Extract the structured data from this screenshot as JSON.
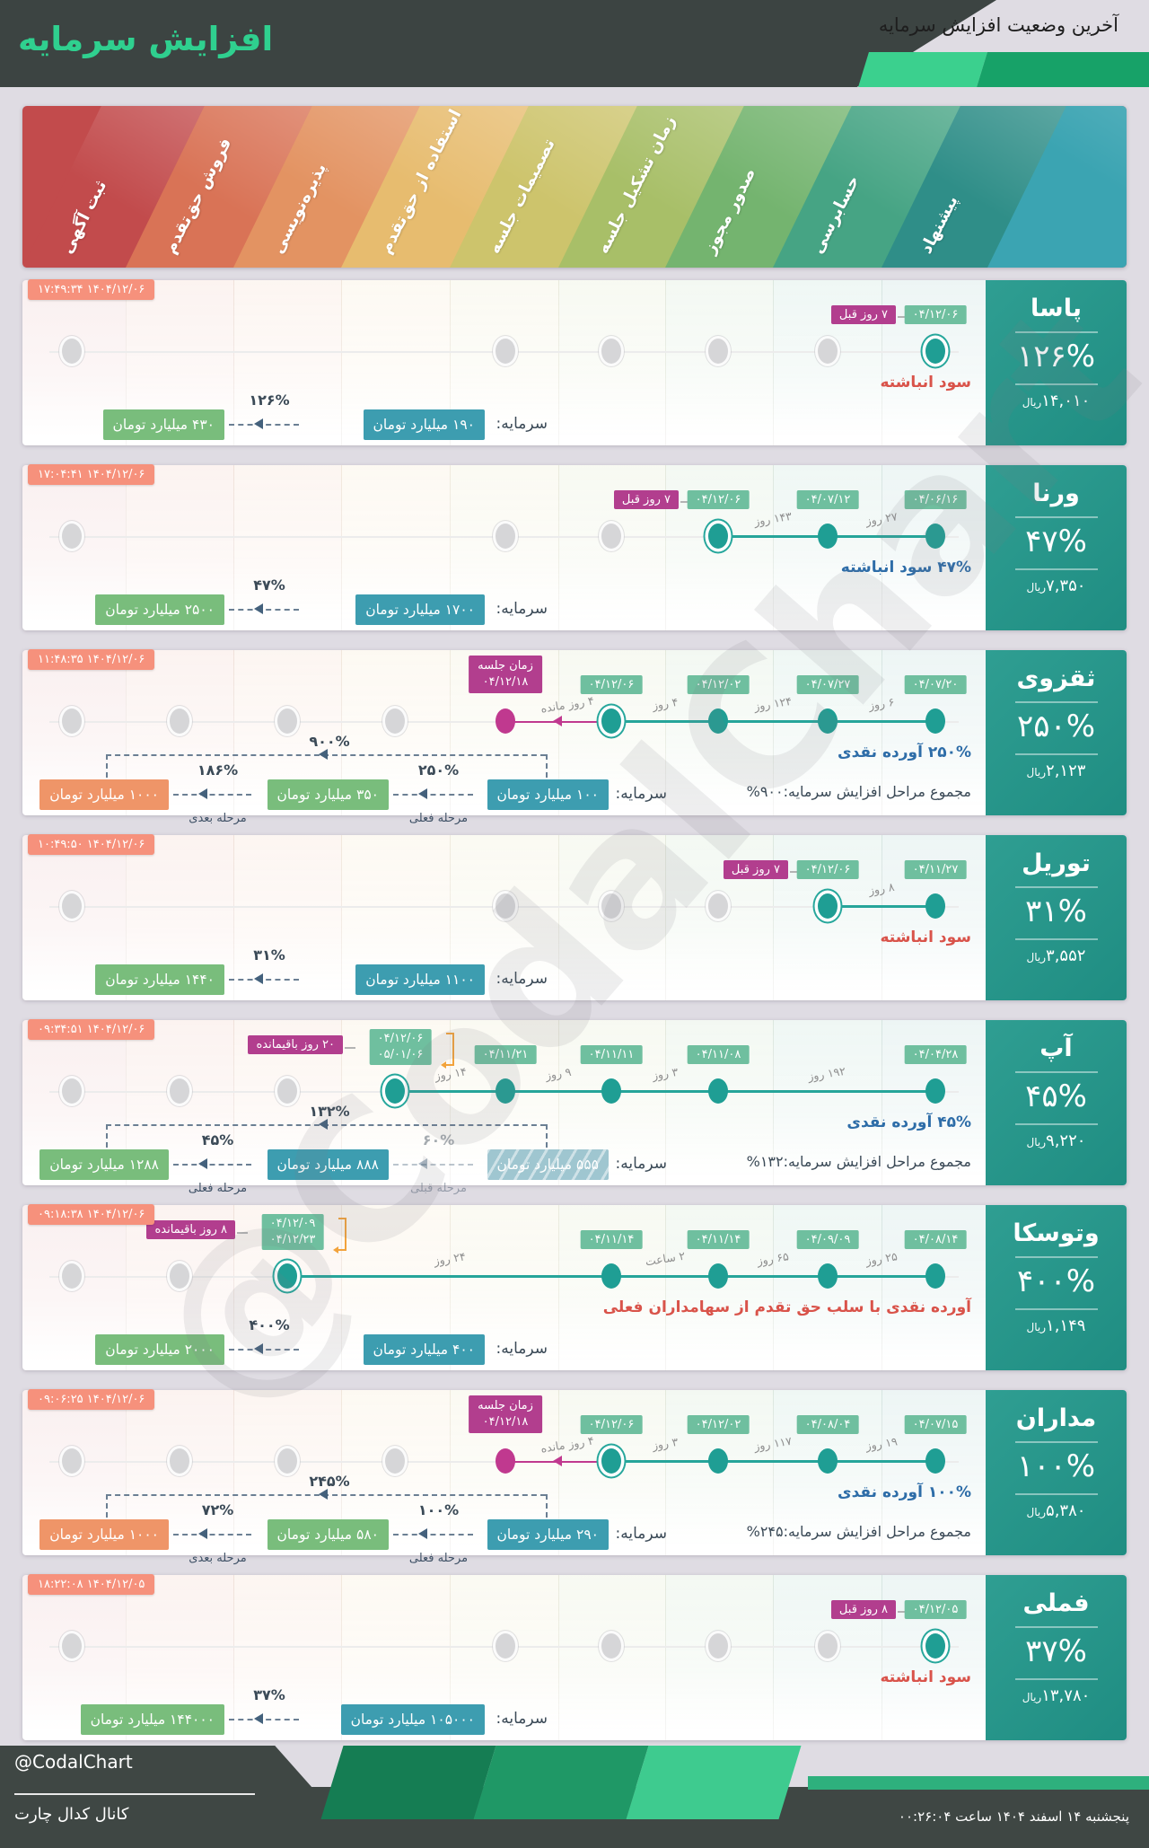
{
  "header": {
    "title": "افزایش سرمایه",
    "subtitle": "آخرین وضعیت افزایش سرمایه"
  },
  "stages": [
    {
      "label": "ثبت آگهی",
      "color": "#c24b4c"
    },
    {
      "label": "فروش حق‌تقدم",
      "color": "#d97356"
    },
    {
      "label": "پذیره‌نویسی",
      "color": "#e39362"
    },
    {
      "label": "استفاده از حق‌تقدم",
      "color": "#e7bc6f"
    },
    {
      "label": "تصمیمات جلسه",
      "color": "#cdc46c"
    },
    {
      "label": "زمان تشکیل جلسه",
      "color": "#a8bf68"
    },
    {
      "label": "صدور مجوز",
      "color": "#74b46f"
    },
    {
      "label": "حسابرسی",
      "color": "#46a484"
    },
    {
      "label": "پیشنهاد",
      "color": "#2f8e88"
    }
  ],
  "banner_edge_color": "#3ba4b2",
  "chart_data": {
    "type": "table",
    "title": "آخرین وضعیت افزایش سرمایه",
    "stage_axis": [
      "پیشنهاد",
      "حسابرسی",
      "صدور مجوز",
      "زمان تشکیل جلسه",
      "تصمیمات جلسه",
      "استفاده از حق‌تقدم",
      "پذیره‌نویسی",
      "فروش حق‌تقدم",
      "ثبت آگهی"
    ],
    "companies": [
      "پاسا",
      "ورنا",
      "ثقزوی",
      "توریل",
      "آپ",
      "وتوسکا",
      "مداران",
      "فملی"
    ],
    "increase_percent": [
      "۱۲۶%",
      "۴۷%",
      "۲۵۰%",
      "۳۱%",
      "۴۵%",
      "۴۰۰%",
      "۱۰۰%",
      "۳۷%"
    ],
    "price_rial": [
      "۱۴,۰۱۰",
      "۷,۳۵۰",
      "۲,۱۲۳",
      "۳,۵۵۲",
      "۹,۲۲۰",
      "۱,۱۴۹",
      "۵,۳۸۰",
      "۱۳,۷۸۰"
    ]
  },
  "rows": [
    {
      "name": "پاسا",
      "percent": "۱۲۶%",
      "price": "۱۴,۰۱۰",
      "price_unit": "ریال",
      "timestamp": "۱۴۰۴/۱۲/۰۶ ۱۷:۴۹:۳۴",
      "events": [
        {
          "col": 8,
          "date": "۰۴/۱۲/۰۶",
          "active": true,
          "ago": "۷ روز قبل"
        }
      ],
      "segments": [],
      "placeholders": [
        0,
        4,
        5,
        6,
        7
      ],
      "note": {
        "text": "سود انباشته",
        "style": "red"
      },
      "capital": {
        "label": "سرمایه:",
        "stages": [
          {
            "value": "۱۹۰ میلیارد تومان",
            "style": "teal"
          },
          {
            "value": "۴۳۰ میلیارد تومان",
            "style": "green"
          }
        ],
        "arrows": [
          {
            "pct": "۱۲۶%"
          }
        ]
      }
    },
    {
      "name": "ورنا",
      "percent": "۴۷%",
      "price": "۷,۳۵۰",
      "price_unit": "ریال",
      "timestamp": "۱۴۰۴/۱۲/۰۶ ۱۷:۰۴:۴۱",
      "events": [
        {
          "col": 8,
          "date": "۰۴/۰۶/۱۶"
        },
        {
          "col": 7,
          "date": "۰۴/۰۷/۱۲"
        },
        {
          "col": 6,
          "date": "۰۴/۱۲/۰۶",
          "active": true,
          "ago": "۷ روز قبل"
        }
      ],
      "segments": [
        {
          "from": 8,
          "to": 7,
          "label": "۲۷ روز"
        },
        {
          "from": 7,
          "to": 6,
          "label": "۱۴۳ روز"
        }
      ],
      "placeholders": [
        0,
        4,
        5
      ],
      "note": {
        "text": "۴۷% سود انباشته",
        "style": "blue"
      },
      "capital": {
        "label": "سرمایه:",
        "stages": [
          {
            "value": "۱۷۰۰ میلیارد تومان",
            "style": "teal"
          },
          {
            "value": "۲۵۰۰ میلیارد تومان",
            "style": "green"
          }
        ],
        "arrows": [
          {
            "pct": "۴۷%"
          }
        ]
      }
    },
    {
      "name": "ثقزوی",
      "percent": "۲۵۰%",
      "price": "۲,۱۲۳",
      "price_unit": "ریال",
      "timestamp": "۱۴۰۴/۱۲/۰۶ ۱۱:۴۸:۳۵",
      "events": [
        {
          "col": 8,
          "date": "۰۴/۰۷/۲۰"
        },
        {
          "col": 7,
          "date": "۰۴/۰۷/۲۷"
        },
        {
          "col": 6,
          "date": "۰۴/۱۲/۰۲"
        },
        {
          "col": 5,
          "date": "۰۴/۱۲/۰۶",
          "active": true
        }
      ],
      "segments": [
        {
          "from": 8,
          "to": 7,
          "label": "۶ روز"
        },
        {
          "from": 7,
          "to": 6,
          "label": "۱۲۴ روز"
        },
        {
          "from": 6,
          "to": 5,
          "label": "۴ روز"
        }
      ],
      "meeting": {
        "col": 4,
        "title": "زمان جلسه",
        "date": "۰۴/۱۲/۱۸",
        "remaining": "۴ روز مانده"
      },
      "placeholders": [
        0,
        1,
        2,
        3
      ],
      "note": {
        "text": "۲۵۰% آورده نقدی",
        "style": "blue"
      },
      "capital": {
        "label": "سرمایه:",
        "stages": [
          {
            "value": "۱۰۰ میلیارد تومان",
            "style": "teal"
          },
          {
            "value": "۳۵۰ میلیارد تومان",
            "style": "green"
          },
          {
            "value": "۱۰۰۰ میلیارد تومان",
            "style": "orange"
          }
        ],
        "arrows": [
          {
            "pct": "۲۵۰%",
            "label": "مرحله فعلی"
          },
          {
            "pct": "۱۸۶%",
            "label": "مرحله بعدی"
          }
        ],
        "bracket_pct": "۹۰۰%",
        "total_note": "مجموع مراحل افزایش سرمایه:۹۰۰%"
      }
    },
    {
      "name": "توریل",
      "percent": "۳۱%",
      "price": "۳,۵۵۲",
      "price_unit": "ریال",
      "timestamp": "۱۴۰۴/۱۲/۰۶ ۱۰:۴۹:۵۰",
      "events": [
        {
          "col": 8,
          "date": "۰۴/۱۱/۲۷"
        },
        {
          "col": 7,
          "date": "۰۴/۱۲/۰۶",
          "active": true,
          "ago": "۷ روز قبل"
        }
      ],
      "segments": [
        {
          "from": 8,
          "to": 7,
          "label": "۸ روز"
        }
      ],
      "placeholders": [
        0,
        4,
        5,
        6
      ],
      "note": {
        "text": "سود انباشته",
        "style": "red"
      },
      "capital": {
        "label": "سرمایه:",
        "stages": [
          {
            "value": "۱۱۰۰ میلیارد تومان",
            "style": "teal"
          },
          {
            "value": "۱۴۴۰ میلیارد تومان",
            "style": "green"
          }
        ],
        "arrows": [
          {
            "pct": "۳۱%"
          }
        ]
      }
    },
    {
      "name": "آپ",
      "percent": "۴۵%",
      "price": "۹,۲۲۰",
      "price_unit": "ریال",
      "timestamp": "۱۴۰۴/۱۲/۰۶ ۰۹:۳۴:۵۱",
      "events": [
        {
          "col": 8,
          "date": "۰۴/۰۴/۲۸"
        },
        {
          "col": 6,
          "date": "۰۴/۱۱/۰۸"
        },
        {
          "col": 5,
          "date": "۰۴/۱۱/۱۱"
        },
        {
          "col": 4,
          "date": "۰۴/۱۱/۲۱"
        },
        {
          "col": 3,
          "dates": [
            "۰۴/۱۲/۰۶",
            "۰۵/۰۱/۰۶"
          ],
          "active": true,
          "remaining": "۲۰ روز باقیمانده"
        }
      ],
      "segments": [
        {
          "from": 8,
          "to": 6,
          "label": "۱۹۲ روز"
        },
        {
          "from": 6,
          "to": 5,
          "label": "۳ روز"
        },
        {
          "from": 5,
          "to": 4,
          "label": "۹ روز"
        },
        {
          "from": 4,
          "to": 3,
          "label": "۱۴ روز"
        }
      ],
      "placeholders": [
        0,
        1,
        2
      ],
      "note": {
        "text": "۴۵% آورده نقدی",
        "style": "blue"
      },
      "capital": {
        "label": "سرمایه:",
        "stages": [
          {
            "value": "۵۵۵ میلیارد تومان",
            "style": "teal-prev"
          },
          {
            "value": "۸۸۸ میلیارد تومان",
            "style": "teal"
          },
          {
            "value": "۱۲۸۸ میلیارد تومان",
            "style": "green"
          }
        ],
        "arrows": [
          {
            "pct": "۶۰%",
            "label": "مرحله قبلی",
            "faded": true
          },
          {
            "pct": "۴۵%",
            "label": "مرحله فعلی"
          }
        ],
        "bracket_pct": "۱۳۲%",
        "total_note": "مجموع مراحل افزایش سرمایه:۱۳۲%"
      }
    },
    {
      "name": "وتوسکا",
      "percent": "۴۰۰%",
      "price": "۱,۱۴۹",
      "price_unit": "ریال",
      "timestamp": "۱۴۰۴/۱۲/۰۶ ۰۹:۱۸:۳۸",
      "events": [
        {
          "col": 8,
          "date": "۰۴/۰۸/۱۴"
        },
        {
          "col": 7,
          "date": "۰۴/۰۹/۰۹"
        },
        {
          "col": 6,
          "date": "۰۴/۱۱/۱۴"
        },
        {
          "col": 5,
          "date": "۰۴/۱۱/۱۴"
        },
        {
          "col": 2,
          "dates": [
            "۰۴/۱۲/۰۹",
            "۰۴/۱۲/۲۳"
          ],
          "active": true,
          "remaining": "۸ روز باقیمانده"
        }
      ],
      "segments": [
        {
          "from": 8,
          "to": 7,
          "label": "۲۵ روز"
        },
        {
          "from": 7,
          "to": 6,
          "label": "۶۵ روز"
        },
        {
          "from": 6,
          "to": 5,
          "label": "۲ ساعت"
        },
        {
          "from": 5,
          "to": 2,
          "label": "۲۴ روز"
        }
      ],
      "placeholders": [
        0,
        1
      ],
      "note": {
        "text": "آورده نقدی با سلب حق تقدم از سهامداران فعلی",
        "style": "red"
      },
      "capital": {
        "label": "سرمایه:",
        "stages": [
          {
            "value": "۴۰۰ میلیارد تومان",
            "style": "teal"
          },
          {
            "value": "۲۰۰۰ میلیارد تومان",
            "style": "green"
          }
        ],
        "arrows": [
          {
            "pct": "۴۰۰%"
          }
        ]
      }
    },
    {
      "name": "مداران",
      "percent": "۱۰۰%",
      "price": "۵,۳۸۰",
      "price_unit": "ریال",
      "timestamp": "۱۴۰۴/۱۲/۰۶ ۰۹:۰۶:۲۵",
      "events": [
        {
          "col": 8,
          "date": "۰۴/۰۷/۱۵"
        },
        {
          "col": 7,
          "date": "۰۴/۰۸/۰۴"
        },
        {
          "col": 6,
          "date": "۰۴/۱۲/۰۲"
        },
        {
          "col": 5,
          "date": "۰۴/۱۲/۰۶",
          "active": true
        }
      ],
      "segments": [
        {
          "from": 8,
          "to": 7,
          "label": "۱۹ روز"
        },
        {
          "from": 7,
          "to": 6,
          "label": "۱۱۷ روز"
        },
        {
          "from": 6,
          "to": 5,
          "label": "۳ روز"
        }
      ],
      "meeting": {
        "col": 4,
        "title": "زمان جلسه",
        "date": "۰۴/۱۲/۱۸",
        "remaining": "۴ روز مانده"
      },
      "placeholders": [
        0,
        1,
        2,
        3
      ],
      "note": {
        "text": "۱۰۰% آورده نقدی",
        "style": "blue"
      },
      "capital": {
        "label": "سرمایه:",
        "stages": [
          {
            "value": "۲۹۰ میلیارد تومان",
            "style": "teal"
          },
          {
            "value": "۵۸۰ میلیارد تومان",
            "style": "green"
          },
          {
            "value": "۱۰۰۰ میلیارد تومان",
            "style": "orange"
          }
        ],
        "arrows": [
          {
            "pct": "۱۰۰%",
            "label": "مرحله فعلی"
          },
          {
            "pct": "۷۲%",
            "label": "مرحله بعدی"
          }
        ],
        "bracket_pct": "۲۴۵%",
        "total_note": "مجموع مراحل افزایش سرمایه:۲۴۵%"
      }
    },
    {
      "name": "فملی",
      "percent": "۳۷%",
      "price": "۱۳,۷۸۰",
      "price_unit": "ریال",
      "timestamp": "۱۴۰۴/۱۲/۰۵ ۱۸:۲۲:۰۸",
      "events": [
        {
          "col": 8,
          "date": "۰۴/۱۲/۰۵",
          "active": true,
          "ago": "۸ روز قبل"
        }
      ],
      "segments": [],
      "placeholders": [
        0,
        4,
        5,
        6,
        7
      ],
      "note": {
        "text": "سود انباشته",
        "style": "red"
      },
      "capital": {
        "label": "سرمایه:",
        "stages": [
          {
            "value": "۱۰۵۰۰۰ میلیارد تومان",
            "style": "teal"
          },
          {
            "value": "۱۴۴۰۰۰ میلیارد تومان",
            "style": "green"
          }
        ],
        "arrows": [
          {
            "pct": "۳۷%"
          }
        ]
      }
    }
  ],
  "watermark": "@CodalChart",
  "footer": {
    "handle": "@CodalChart",
    "channel": "کانال کدال چارت",
    "datetime": "پنجشنبه ۱۴ اسفند ۱۴۰۴ ساعت ۰۰:۲۶:۰۴",
    "shape_colors": [
      "#157d53",
      "#1f9866",
      "#3ecb8f"
    ]
  },
  "colors": {
    "accent_green": "#2fd08f",
    "dark_slate": "#3f4744",
    "timestamp_badge": "#f6917c",
    "teal_dot": "#1f9e94",
    "pink_dot": "#c0398f",
    "date_badge": "#6fbf9f",
    "purple_badge": "#b23e8e",
    "badge_teal": "#3d9db0",
    "badge_green": "#79bd7c",
    "badge_orange": "#ef9568",
    "note_red": "#d9534a",
    "note_blue": "#2e6da8",
    "bracket_orange": "#f2a33c",
    "sidebar_teal": "#279a8e",
    "green_bar": "#2eb07d"
  }
}
